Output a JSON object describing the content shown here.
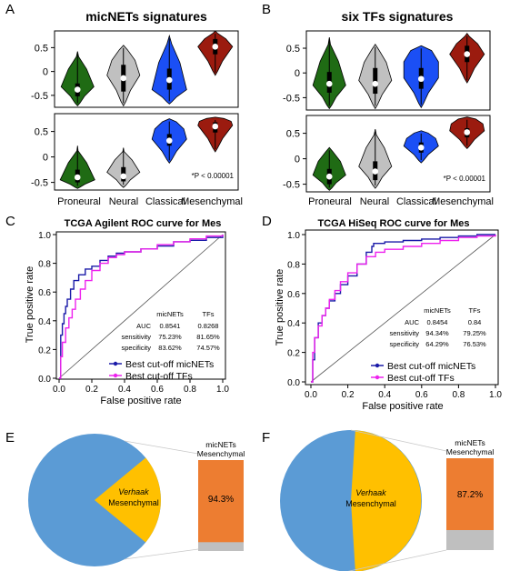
{
  "colors": {
    "proneural": "#1f6b14",
    "neural": "#c0c0c0",
    "classical": "#1b4ff5",
    "mesenchymal": "#9b1b0f",
    "pie_blue": "#5b9bd5",
    "pie_yellow": "#ffc000",
    "bar_orange": "#ed7d31",
    "bar_gray": "#bfbfbf",
    "roc_micnets": "#1a1aa8",
    "roc_tfs": "#ee22ee"
  },
  "chart_data": [
    {
      "panel": "A",
      "type": "violin",
      "title": "micNETs signatures",
      "categories": [
        "Proneural",
        "Neural",
        "Classical",
        "Mesenchymal"
      ],
      "annotation": "*P < 0.00001",
      "subplots": [
        {
          "ylim": [
            -0.75,
            0.85
          ],
          "yticks": [
            -0.5,
            0,
            0.5
          ],
          "violins": [
            {
              "min": -0.72,
              "max": 0.42,
              "median": -0.38,
              "q1": -0.52,
              "q3": -0.25,
              "mode": -0.32,
              "widthTop": 0.1,
              "widthMode": 0.85,
              "widthBottom": 0.05
            },
            {
              "min": -0.72,
              "max": 0.55,
              "median": -0.14,
              "q1": -0.42,
              "q3": 0.14,
              "mode": -0.08,
              "widthTop": 0.35,
              "widthMode": 0.85,
              "widthBottom": 0.05
            },
            {
              "min": -0.68,
              "max": 0.75,
              "median": -0.18,
              "q1": -0.38,
              "q3": 0.06,
              "mode": -0.38,
              "widthTop": 0.2,
              "widthMode": 0.9,
              "widthBottom": 0.05
            },
            {
              "min": -0.08,
              "max": 0.85,
              "median": 0.52,
              "q1": 0.36,
              "q3": 0.68,
              "mode": 0.52,
              "widthTop": 0.2,
              "widthMode": 0.9,
              "widthBottom": 0.05
            }
          ]
        },
        {
          "ylim": [
            -0.65,
            0.85
          ],
          "yticks": [
            -0.5,
            0,
            0.5
          ],
          "violins": [
            {
              "min": -0.62,
              "max": 0.22,
              "median": -0.4,
              "q1": -0.5,
              "q3": -0.25,
              "mode": -0.45,
              "widthTop": 0.05,
              "widthMode": 0.9,
              "widthBottom": 0.05
            },
            {
              "min": -0.6,
              "max": 0.18,
              "median": -0.38,
              "q1": -0.48,
              "q3": -0.2,
              "mode": -0.3,
              "widthTop": 0.05,
              "widthMode": 0.85,
              "widthBottom": 0.05
            },
            {
              "min": -0.12,
              "max": 0.75,
              "median": 0.32,
              "q1": 0.22,
              "q3": 0.45,
              "mode": 0.35,
              "widthTop": 0.6,
              "widthMode": 0.9,
              "widthBottom": 0.05
            },
            {
              "min": 0.1,
              "max": 0.78,
              "median": 0.6,
              "q1": 0.48,
              "q3": 0.68,
              "mode": 0.62,
              "widthTop": 0.75,
              "widthMode": 0.9,
              "widthBottom": 0.05
            }
          ]
        }
      ]
    },
    {
      "panel": "B",
      "type": "violin",
      "title": "six TFs signatures",
      "categories": [
        "Proneural",
        "Neural",
        "Classical",
        "Mesenchymal"
      ],
      "annotation": "*P < 0.00001",
      "subplots": [
        {
          "ylim": [
            -0.75,
            0.85
          ],
          "yticks": [
            -0.5,
            0,
            0.5
          ],
          "violins": [
            {
              "min": -0.72,
              "max": 0.72,
              "median": -0.22,
              "q1": -0.4,
              "q3": 0.02,
              "mode": -0.25,
              "widthTop": 0.1,
              "widthMode": 0.85,
              "widthBottom": 0.05
            },
            {
              "min": -0.72,
              "max": 0.58,
              "median": -0.22,
              "q1": -0.42,
              "q3": 0.1,
              "mode": -0.15,
              "widthTop": 0.3,
              "widthMode": 0.85,
              "widthBottom": 0.05
            },
            {
              "min": -0.7,
              "max": 0.55,
              "median": -0.12,
              "q1": -0.32,
              "q3": 0.1,
              "mode": -0.1,
              "widthTop": 0.9,
              "widthMode": 0.9,
              "widthBottom": 0.05
            },
            {
              "min": -0.2,
              "max": 0.8,
              "median": 0.38,
              "q1": 0.22,
              "q3": 0.55,
              "mode": 0.38,
              "widthTop": 0.2,
              "widthMode": 0.9,
              "widthBottom": 0.05
            }
          ]
        },
        {
          "ylim": [
            -0.65,
            0.85
          ],
          "yticks": [
            -0.5,
            0,
            0.5
          ],
          "violins": [
            {
              "min": -0.62,
              "max": 0.22,
              "median": -0.35,
              "q1": -0.5,
              "q3": -0.2,
              "mode": -0.32,
              "widthTop": 0.3,
              "widthMode": 0.85,
              "widthBottom": 0.05
            },
            {
              "min": -0.58,
              "max": 0.58,
              "median": -0.25,
              "q1": -0.42,
              "q3": -0.05,
              "mode": -0.15,
              "widthTop": 0.1,
              "widthMode": 0.85,
              "widthBottom": 0.05
            },
            {
              "min": -0.08,
              "max": 0.55,
              "median": 0.22,
              "q1": 0.12,
              "q3": 0.32,
              "mode": 0.25,
              "widthTop": 0.6,
              "widthMode": 0.9,
              "widthBottom": 0.05
            },
            {
              "min": 0.2,
              "max": 0.82,
              "median": 0.52,
              "q1": 0.42,
              "q3": 0.6,
              "mode": 0.55,
              "widthTop": 0.75,
              "widthMode": 0.9,
              "widthBottom": 0.05
            }
          ]
        }
      ]
    },
    {
      "panel": "C",
      "type": "line",
      "title": "TCGA Agilent ROC curve for Mes",
      "xlabel": "False positive rate",
      "ylabel": "True positive rate",
      "xlim": [
        0,
        1
      ],
      "ylim": [
        0,
        1
      ],
      "xticks": [
        0.0,
        0.2,
        0.4,
        0.6,
        0.8,
        1.0
      ],
      "yticks": [
        0.0,
        0.2,
        0.4,
        0.6,
        0.8,
        1.0
      ],
      "table": {
        "headers": [
          "",
          "micNETs",
          "TFs"
        ],
        "rows": [
          [
            "AUC",
            "0.8541",
            "0.8268"
          ],
          [
            "sensitivity",
            "75.23%",
            "81.65%"
          ],
          [
            "specificity",
            "83.62%",
            "74.57%"
          ]
        ]
      },
      "legend": [
        "Best cut-off micNETs",
        "Best cut-off TFs"
      ],
      "series": [
        {
          "name": "Best cut-off micNETs",
          "x": [
            0,
            0.01,
            0.02,
            0.03,
            0.04,
            0.05,
            0.07,
            0.09,
            0.12,
            0.16,
            0.2,
            0.25,
            0.3,
            0.35,
            0.4,
            0.5,
            0.6,
            0.7,
            0.8,
            0.9,
            1.0
          ],
          "y": [
            0,
            0.3,
            0.38,
            0.45,
            0.5,
            0.55,
            0.62,
            0.68,
            0.72,
            0.76,
            0.78,
            0.82,
            0.85,
            0.87,
            0.88,
            0.9,
            0.92,
            0.95,
            0.96,
            0.98,
            1.0
          ]
        },
        {
          "name": "Best cut-off TFs",
          "x": [
            0,
            0.01,
            0.02,
            0.04,
            0.06,
            0.08,
            0.1,
            0.13,
            0.16,
            0.2,
            0.25,
            0.3,
            0.35,
            0.4,
            0.5,
            0.6,
            0.7,
            0.8,
            0.9,
            1.0
          ],
          "y": [
            0,
            0.15,
            0.25,
            0.35,
            0.42,
            0.48,
            0.55,
            0.62,
            0.68,
            0.75,
            0.8,
            0.84,
            0.86,
            0.88,
            0.9,
            0.93,
            0.95,
            0.97,
            0.99,
            1.0
          ]
        }
      ]
    },
    {
      "panel": "D",
      "type": "line",
      "title": "TCGA HiSeq ROC curve for Mes",
      "xlabel": "False positive rate",
      "ylabel": "True positive rate",
      "xlim": [
        0,
        1
      ],
      "ylim": [
        0,
        1
      ],
      "xticks": [
        0.0,
        0.2,
        0.4,
        0.6,
        0.8,
        1.0
      ],
      "yticks": [
        0.0,
        0.2,
        0.4,
        0.6,
        0.8,
        1.0
      ],
      "table": {
        "headers": [
          "",
          "micNETs",
          "TFs"
        ],
        "rows": [
          [
            "AUC",
            "0.8454",
            "0.84"
          ],
          [
            "sensitivity",
            "94.34%",
            "79.25%"
          ],
          [
            "specificity",
            "64.29%",
            "76.53%"
          ]
        ]
      },
      "legend": [
        "Best cut-off micNETs",
        "Best cut-off TFs"
      ],
      "series": [
        {
          "name": "Best cut-off micNETs",
          "x": [
            0,
            0.01,
            0.02,
            0.04,
            0.06,
            0.08,
            0.1,
            0.13,
            0.16,
            0.2,
            0.25,
            0.3,
            0.33,
            0.34,
            0.4,
            0.5,
            0.6,
            0.7,
            0.8,
            0.9,
            1.0
          ],
          "y": [
            0,
            0.15,
            0.3,
            0.4,
            0.45,
            0.5,
            0.55,
            0.6,
            0.66,
            0.72,
            0.8,
            0.88,
            0.92,
            0.94,
            0.95,
            0.96,
            0.97,
            0.98,
            0.99,
            1.0,
            1.0
          ]
        },
        {
          "name": "Best cut-off TFs",
          "x": [
            0,
            0.01,
            0.02,
            0.04,
            0.06,
            0.08,
            0.1,
            0.13,
            0.16,
            0.2,
            0.25,
            0.3,
            0.35,
            0.4,
            0.5,
            0.6,
            0.7,
            0.8,
            0.9,
            1.0
          ],
          "y": [
            0,
            0.2,
            0.3,
            0.38,
            0.45,
            0.5,
            0.56,
            0.62,
            0.68,
            0.74,
            0.8,
            0.85,
            0.88,
            0.9,
            0.92,
            0.94,
            0.96,
            0.98,
            0.99,
            1.0
          ]
        }
      ]
    },
    {
      "panel": "E",
      "type": "pie",
      "slices": [
        {
          "label": "Verhaak Mesenchymal",
          "fraction": 0.22
        },
        {
          "label": "",
          "fraction": 0.78
        }
      ],
      "bar": {
        "title": "micNETs Mesenchymal",
        "value_label": "94.3%",
        "value": 94.3
      }
    },
    {
      "panel": "F",
      "type": "pie",
      "slices": [
        {
          "label": "Verhaak Mesenchymal",
          "fraction": 0.48
        },
        {
          "label": "",
          "fraction": 0.52
        }
      ],
      "bar": {
        "title": "micNETs Mesenchymal",
        "value_label": "87.2%",
        "value": 87.2
      }
    }
  ]
}
